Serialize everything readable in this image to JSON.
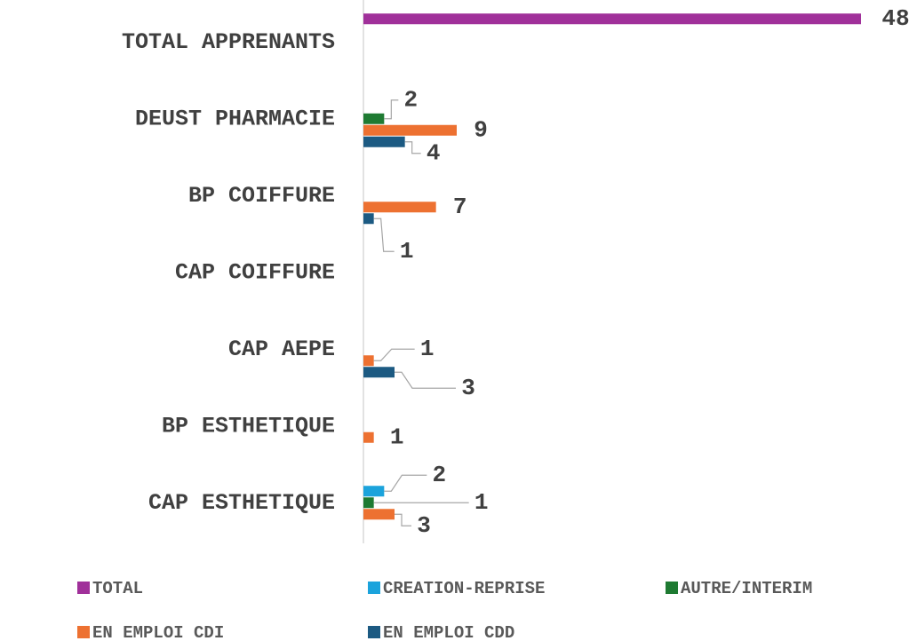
{
  "chart_data": {
    "type": "barh",
    "categories": [
      "TOTAL APPRENANTS",
      "DEUST PHARMACIE",
      "BP COIFFURE",
      "CAP COIFFURE",
      "CAP AEPE",
      "BP ESTHETIQUE",
      "CAP ESTHETIQUE"
    ],
    "series": [
      {
        "name": "TOTAL",
        "color": "#a0309a",
        "values": [
          48,
          null,
          null,
          null,
          null,
          null,
          null
        ]
      },
      {
        "name": "CREATION-REPRISE",
        "color": "#1ba3dc",
        "values": [
          null,
          null,
          null,
          null,
          null,
          null,
          2
        ]
      },
      {
        "name": "AUTRE/INTERIM",
        "color": "#1e7a32",
        "values": [
          null,
          2,
          null,
          null,
          null,
          null,
          1
        ]
      },
      {
        "name": "EN EMPLOI CDI",
        "color": "#ed7131",
        "values": [
          null,
          9,
          7,
          null,
          1,
          1,
          3
        ]
      },
      {
        "name": "EN EMPLOI CDD",
        "color": "#1c5a82",
        "values": [
          null,
          4,
          1,
          null,
          3,
          null,
          null
        ]
      }
    ]
  }
}
